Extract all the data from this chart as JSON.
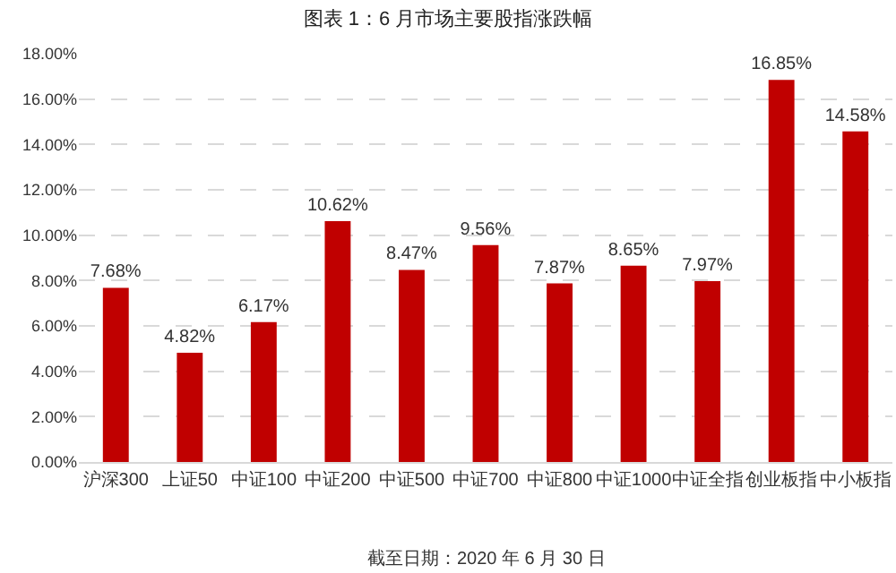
{
  "chart_data": {
    "type": "bar",
    "title": "图表 1：6 月市场主要股指涨跌幅",
    "categories": [
      "沪深300",
      "上证50",
      "中证100",
      "中证200",
      "中证500",
      "中证700",
      "中证800",
      "中证1000",
      "中证全指",
      "创业板指",
      "中小板指"
    ],
    "values": [
      7.68,
      4.82,
      6.17,
      10.62,
      8.47,
      9.56,
      7.87,
      8.65,
      7.97,
      16.85,
      14.58
    ],
    "value_labels": [
      "7.68%",
      "4.82%",
      "6.17%",
      "10.62%",
      "8.47%",
      "9.56%",
      "7.87%",
      "8.65%",
      "7.97%",
      "16.85%",
      "14.58%"
    ],
    "color": "#c00000",
    "ylim": [
      0,
      18
    ],
    "yticks": [
      {
        "value": 0,
        "label": "0.00%"
      },
      {
        "value": 2,
        "label": "2.00%"
      },
      {
        "value": 4,
        "label": "4.00%"
      },
      {
        "value": 6,
        "label": "6.00%"
      },
      {
        "value": 8,
        "label": "8.00%"
      },
      {
        "value": 10,
        "label": "10.00%"
      },
      {
        "value": 12,
        "label": "12.00%"
      },
      {
        "value": 14,
        "label": "14.00%"
      },
      {
        "value": 16,
        "label": "16.00%"
      },
      {
        "value": 18,
        "label": "18.00%"
      }
    ],
    "grid": "y",
    "annotations": [
      "截至日期：2020 年 6 月 30 日"
    ]
  }
}
